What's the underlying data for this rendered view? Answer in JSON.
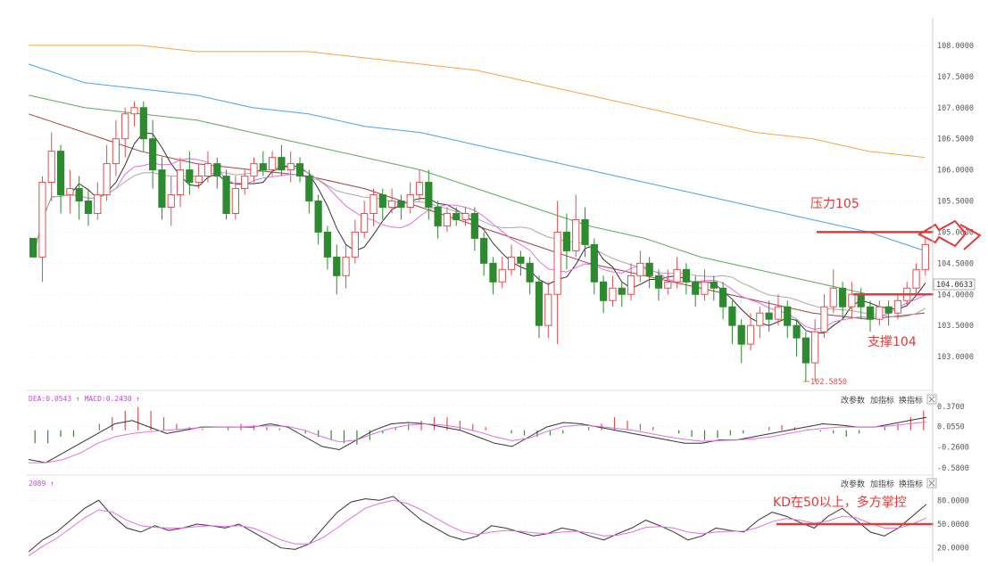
{
  "colors": {
    "up": "#e05050",
    "down": "#2e8a2e",
    "annotation": "#e03a3a",
    "ma_orange": "#f5a640",
    "ma_blue": "#4aa3e0",
    "ma_green": "#5aaa5a",
    "ma_brown": "#a04040",
    "ma_gray": "#aaaaaa",
    "ma_pink": "#e070e0",
    "ma_black": "#333333",
    "grid": "#e6e6e6"
  },
  "toolbar": {
    "panel1": {
      "change_params": "改参数",
      "add_indicator": "加指标",
      "switch_indicator": "换指标"
    },
    "panel2": {
      "change_params": "改参数",
      "add_indicator": "加指标",
      "switch_indicator": "换指标"
    },
    "close_icon": "close-icon"
  },
  "macd_header": "DEA:0.0543 ↑  MACD:0.2430 ↑",
  "kd_header": "2089 ↑",
  "chart_data": [
    {
      "type": "candlestick",
      "ylim": [
        102.5,
        108.3
      ],
      "y_ticks": [
        "108.0000",
        "107.5000",
        "107.0000",
        "106.5000",
        "106.0000",
        "105.5000",
        "105.0000",
        "104.5000",
        "104.0000",
        "103.5000",
        "103.0000"
      ],
      "last_price": "104.0633",
      "low_marker": "102.5850",
      "annotations": {
        "resistance": "压力105",
        "support": "支撑104"
      },
      "levels": {
        "resistance": 105.0,
        "support": 104.0
      },
      "candles": [
        [
          104.9,
          104.6,
          104.7,
          104.9
        ],
        [
          104.6,
          105.8,
          105.9,
          104.2
        ],
        [
          105.8,
          106.3,
          106.6,
          105.5
        ],
        [
          106.3,
          105.6,
          106.4,
          105.3
        ],
        [
          105.6,
          105.7,
          106.0,
          105.3
        ],
        [
          105.7,
          105.5,
          105.9,
          105.2
        ],
        [
          105.5,
          105.3,
          105.7,
          105.1
        ],
        [
          105.3,
          105.6,
          105.8,
          105.2
        ],
        [
          105.6,
          106.1,
          106.4,
          105.5
        ],
        [
          106.1,
          106.5,
          106.8,
          105.9
        ],
        [
          106.5,
          106.9,
          107.0,
          106.2
        ],
        [
          106.9,
          107.0,
          107.1,
          106.7
        ],
        [
          107.0,
          106.5,
          107.1,
          106.3
        ],
        [
          106.5,
          106.0,
          106.8,
          105.7
        ],
        [
          106.0,
          105.4,
          106.2,
          105.2
        ],
        [
          105.4,
          105.6,
          105.9,
          105.1
        ],
        [
          105.6,
          106.0,
          106.2,
          105.4
        ],
        [
          106.0,
          105.8,
          106.3,
          105.6
        ],
        [
          105.8,
          105.9,
          106.1,
          105.7
        ],
        [
          105.9,
          106.1,
          106.3,
          105.8
        ],
        [
          106.1,
          105.9,
          106.2,
          105.7
        ],
        [
          105.9,
          105.3,
          106.0,
          105.2
        ],
        [
          105.3,
          105.7,
          105.9,
          105.2
        ],
        [
          105.7,
          105.9,
          106.0,
          105.6
        ],
        [
          105.9,
          106.1,
          106.2,
          105.8
        ],
        [
          106.1,
          106.0,
          106.3,
          105.9
        ],
        [
          106.0,
          106.2,
          106.3,
          105.9
        ],
        [
          106.2,
          106.0,
          106.4,
          105.9
        ],
        [
          106.0,
          106.1,
          106.3,
          105.8
        ],
        [
          106.1,
          105.9,
          106.2,
          105.8
        ],
        [
          105.9,
          105.5,
          106.0,
          105.3
        ],
        [
          105.5,
          105.0,
          105.6,
          104.8
        ],
        [
          105.0,
          104.6,
          105.1,
          104.4
        ],
        [
          104.6,
          104.3,
          104.8,
          104.0
        ],
        [
          104.3,
          104.6,
          104.8,
          104.1
        ],
        [
          104.6,
          105.0,
          105.2,
          104.5
        ],
        [
          105.0,
          105.3,
          105.5,
          104.9
        ],
        [
          105.3,
          105.6,
          105.7,
          105.1
        ],
        [
          105.6,
          105.4,
          105.7,
          105.2
        ],
        [
          105.4,
          105.5,
          105.7,
          105.3
        ],
        [
          105.5,
          105.4,
          105.6,
          105.2
        ],
        [
          105.4,
          105.6,
          105.8,
          105.3
        ],
        [
          105.6,
          105.8,
          106.0,
          105.5
        ],
        [
          105.8,
          105.4,
          106.0,
          105.2
        ],
        [
          105.4,
          105.1,
          105.5,
          104.9
        ],
        [
          105.1,
          105.3,
          105.4,
          105.0
        ],
        [
          105.3,
          105.2,
          105.4,
          105.1
        ],
        [
          105.2,
          105.3,
          105.4,
          105.1
        ],
        [
          105.3,
          104.9,
          105.4,
          104.7
        ],
        [
          104.9,
          104.5,
          105.0,
          104.3
        ],
        [
          104.5,
          104.2,
          104.6,
          104.0
        ],
        [
          104.2,
          104.4,
          104.6,
          104.1
        ],
        [
          104.4,
          104.6,
          104.8,
          104.3
        ],
        [
          104.6,
          104.5,
          104.7,
          104.3
        ],
        [
          104.5,
          104.2,
          104.6,
          104.0
        ],
        [
          104.2,
          103.5,
          104.3,
          103.3
        ],
        [
          103.5,
          104.0,
          104.2,
          103.3
        ],
        [
          104.0,
          105.0,
          105.5,
          103.2
        ],
        [
          105.0,
          104.7,
          105.3,
          104.4
        ],
        [
          104.7,
          105.2,
          105.6,
          104.6
        ],
        [
          105.2,
          104.8,
          105.4,
          104.6
        ],
        [
          104.8,
          104.2,
          104.9,
          104.0
        ],
        [
          104.2,
          103.9,
          104.3,
          103.7
        ],
        [
          103.9,
          104.1,
          104.3,
          103.8
        ],
        [
          104.1,
          104.0,
          104.2,
          103.8
        ],
        [
          104.0,
          104.3,
          104.5,
          103.9
        ],
        [
          104.3,
          104.5,
          104.7,
          104.2
        ],
        [
          104.5,
          104.3,
          104.6,
          104.1
        ],
        [
          104.3,
          104.1,
          104.4,
          103.9
        ],
        [
          104.1,
          104.2,
          104.4,
          104.0
        ],
        [
          104.2,
          104.4,
          104.6,
          104.1
        ],
        [
          104.4,
          104.2,
          104.5,
          104.0
        ],
        [
          104.2,
          104.0,
          104.3,
          103.8
        ],
        [
          104.0,
          104.2,
          104.4,
          103.9
        ],
        [
          104.2,
          104.1,
          104.3,
          103.9
        ],
        [
          104.1,
          103.8,
          104.2,
          103.6
        ],
        [
          103.8,
          103.5,
          103.9,
          103.2
        ],
        [
          103.5,
          103.2,
          103.6,
          102.9
        ],
        [
          103.2,
          103.5,
          103.7,
          103.1
        ],
        [
          103.5,
          103.7,
          103.8,
          103.3
        ],
        [
          103.7,
          103.6,
          103.9,
          103.4
        ],
        [
          103.6,
          103.8,
          104.0,
          103.5
        ],
        [
          103.8,
          103.5,
          103.9,
          103.3
        ],
        [
          103.5,
          103.3,
          103.6,
          103.0
        ],
        [
          103.3,
          102.9,
          103.4,
          102.6
        ],
        [
          102.9,
          103.4,
          103.6,
          102.6
        ],
        [
          103.4,
          103.8,
          104.0,
          103.3
        ],
        [
          103.8,
          104.1,
          104.4,
          103.7
        ],
        [
          104.1,
          103.8,
          104.2,
          103.6
        ],
        [
          103.8,
          104.0,
          104.2,
          103.6
        ],
        [
          104.0,
          103.8,
          104.1,
          103.6
        ],
        [
          103.8,
          103.6,
          103.9,
          103.4
        ],
        [
          103.6,
          103.8,
          103.9,
          103.5
        ],
        [
          103.8,
          103.7,
          103.9,
          103.5
        ],
        [
          103.7,
          103.9,
          104.0,
          103.6
        ],
        [
          103.9,
          104.1,
          104.2,
          103.8
        ],
        [
          104.1,
          104.4,
          104.5,
          104.0
        ],
        [
          104.4,
          104.8,
          104.9,
          104.3
        ]
      ],
      "ma_orange": [
        108.0,
        108.0,
        108.0,
        107.9,
        107.9,
        107.9,
        107.8,
        107.7,
        107.6,
        107.4,
        107.2,
        107.0,
        106.8,
        106.6,
        106.5,
        106.3,
        106.2
      ],
      "ma_blue": [
        107.7,
        107.4,
        107.3,
        107.2,
        107.0,
        106.9,
        106.7,
        106.6,
        106.4,
        106.2,
        106.0,
        105.8,
        105.6,
        105.4,
        105.2,
        105.0,
        104.7
      ],
      "ma_green": [
        107.2,
        107.0,
        106.9,
        106.8,
        106.6,
        106.4,
        106.2,
        106.0,
        105.7,
        105.4,
        105.1,
        104.9,
        104.6,
        104.4,
        104.2,
        104.0,
        104.0
      ],
      "ma_brown": [
        106.9,
        106.6,
        106.3,
        106.1,
        106.0,
        105.9,
        105.7,
        105.4,
        105.1,
        104.8,
        104.5,
        104.3,
        104.1,
        103.9,
        103.7,
        103.6,
        103.7
      ]
    },
    {
      "type": "macd",
      "y_ticks": [
        "0.3700",
        "0.0550",
        "-0.2600",
        "-0.5800"
      ],
      "ylim": [
        -0.65,
        0.45
      ],
      "histogram": [
        -0.2,
        -0.2,
        -0.1,
        -0.1,
        0.0,
        0.1,
        0.2,
        0.3,
        0.36,
        0.3,
        0.2,
        0.1,
        0.05,
        0.02,
        0.0,
        0.05,
        0.1,
        0.08,
        0.05,
        0.03,
        0.01,
        -0.05,
        -0.1,
        -0.15,
        -0.2,
        -0.22,
        -0.15,
        -0.05,
        0.05,
        0.1,
        0.15,
        0.2,
        0.2,
        0.15,
        0.1,
        0.05,
        0.0,
        -0.05,
        -0.08,
        -0.1,
        -0.08,
        -0.05,
        0.0,
        0.05,
        0.1,
        0.2,
        0.15,
        0.1,
        0.05,
        0.0,
        -0.05,
        -0.1,
        -0.15,
        -0.12,
        -0.08,
        -0.05,
        0.0,
        0.05,
        0.08,
        0.05,
        0.02,
        -0.02,
        -0.05,
        -0.1,
        -0.05,
        0.0,
        0.05,
        0.1,
        0.2,
        0.3
      ],
      "macd_line": [
        -0.45,
        -0.5,
        -0.35,
        -0.2,
        -0.05,
        0.1,
        0.15,
        0.05,
        -0.05,
        0.0,
        0.05,
        0.05,
        0.05,
        0.05,
        0.1,
        0.05,
        -0.1,
        -0.25,
        -0.3,
        -0.15,
        0.0,
        0.1,
        0.12,
        0.1,
        0.05,
        0.0,
        -0.1,
        -0.2,
        -0.25,
        -0.1,
        0.05,
        0.12,
        0.1,
        0.05,
        0.0,
        -0.05,
        -0.1,
        -0.15,
        -0.2,
        -0.2,
        -0.15,
        -0.15,
        -0.1,
        -0.05,
        0.0,
        0.05,
        0.1,
        0.08,
        0.05,
        0.05,
        0.1,
        0.15,
        0.2
      ],
      "signal_line": [
        -0.5,
        -0.5,
        -0.45,
        -0.35,
        -0.2,
        -0.1,
        -0.05,
        -0.02,
        0.0,
        0.02,
        0.04,
        0.05,
        0.05,
        0.06,
        0.07,
        0.06,
        0.0,
        -0.1,
        -0.18,
        -0.15,
        -0.05,
        0.03,
        0.08,
        0.1,
        0.08,
        0.04,
        -0.02,
        -0.1,
        -0.16,
        -0.12,
        -0.02,
        0.06,
        0.08,
        0.06,
        0.03,
        0.0,
        -0.05,
        -0.1,
        -0.14,
        -0.17,
        -0.16,
        -0.15,
        -0.13,
        -0.1,
        -0.05,
        0.0,
        0.03,
        0.05,
        0.05,
        0.05,
        0.07,
        0.1,
        0.13
      ]
    },
    {
      "type": "kd",
      "y_ticks": [
        "80.0000",
        "50.0000",
        "20.0000"
      ],
      "ylim": [
        5,
        95
      ],
      "level": 50,
      "annotation": "KD在50以上，多方掌控",
      "k_line": [
        15,
        30,
        40,
        55,
        70,
        80,
        60,
        45,
        40,
        48,
        42,
        45,
        50,
        48,
        45,
        50,
        40,
        30,
        20,
        18,
        25,
        45,
        65,
        78,
        82,
        80,
        85,
        70,
        55,
        45,
        35,
        30,
        35,
        48,
        45,
        40,
        35,
        38,
        45,
        42,
        35,
        30,
        38,
        45,
        55,
        48,
        40,
        30,
        35,
        45,
        42,
        40,
        55,
        65,
        60,
        52,
        45,
        60,
        70,
        55,
        40,
        35,
        45,
        60,
        75
      ],
      "d_line": [
        10,
        22,
        32,
        45,
        58,
        68,
        65,
        55,
        48,
        46,
        45,
        45,
        47,
        48,
        47,
        48,
        45,
        38,
        30,
        25,
        25,
        33,
        45,
        58,
        70,
        76,
        80,
        76,
        68,
        58,
        48,
        40,
        37,
        40,
        42,
        41,
        39,
        38,
        40,
        41,
        39,
        35,
        36,
        40,
        46,
        47,
        45,
        40,
        38,
        40,
        41,
        41,
        46,
        53,
        57,
        55,
        51,
        54,
        60,
        58,
        51,
        45,
        45,
        50,
        58
      ]
    }
  ]
}
